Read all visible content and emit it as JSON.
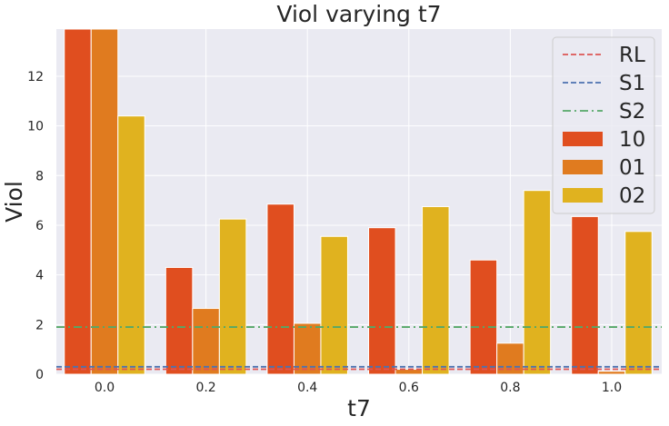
{
  "chart_data": {
    "type": "bar",
    "title": "Viol varying t7",
    "xlabel": "t7",
    "ylabel": "Viol",
    "categories": [
      "0.0",
      "0.2",
      "0.4",
      "0.6",
      "0.8",
      "1.0"
    ],
    "series": [
      {
        "name": "10",
        "color": "#e04e1f",
        "values": [
          14.0,
          4.3,
          6.85,
          5.9,
          4.6,
          6.35
        ]
      },
      {
        "name": "01",
        "color": "#e07b1f",
        "values": [
          14.0,
          2.65,
          2.05,
          0.2,
          1.25,
          0.12
        ]
      },
      {
        "name": "02",
        "color": "#e0b21f",
        "values": [
          10.4,
          6.25,
          5.55,
          6.75,
          7.4,
          5.75
        ]
      }
    ],
    "reference_lines": [
      {
        "name": "RL",
        "value": 0.2,
        "color": "#dd5555",
        "style": "dashed"
      },
      {
        "name": "S1",
        "value": 0.3,
        "color": "#4c72b0",
        "style": "dashed"
      },
      {
        "name": "S2",
        "value": 1.9,
        "color": "#55a868",
        "style": "dashdot"
      }
    ],
    "ylim": [
      0,
      13.9
    ],
    "yticks": [
      "0",
      "2",
      "4",
      "6",
      "8",
      "10",
      "12"
    ],
    "grid": true,
    "legend_position": "top-right",
    "background_color": "#eaeaf2"
  }
}
